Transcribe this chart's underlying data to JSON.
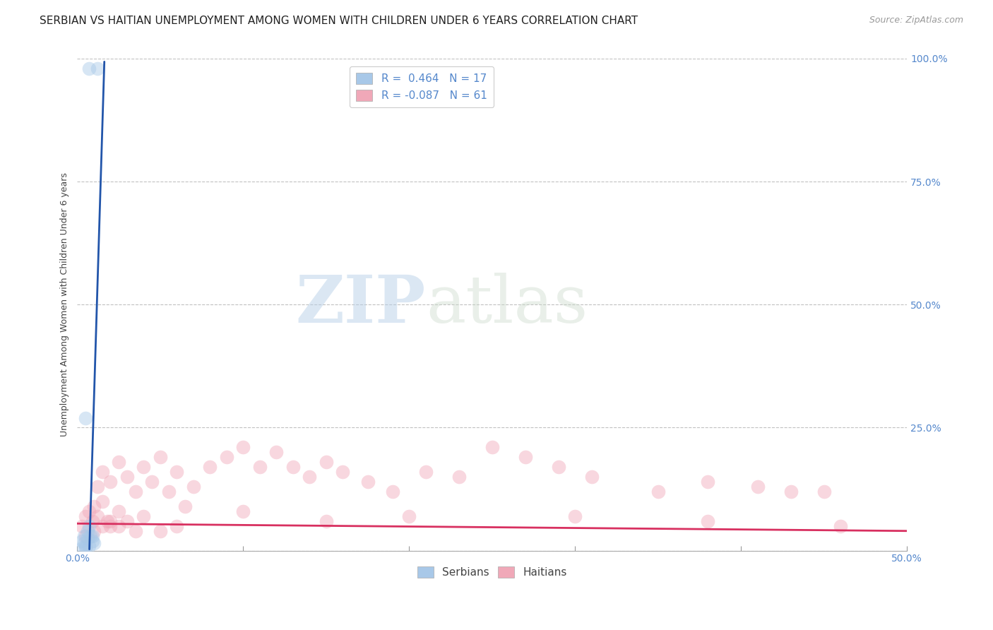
{
  "title": "SERBIAN VS HAITIAN UNEMPLOYMENT AMONG WOMEN WITH CHILDREN UNDER 6 YEARS CORRELATION CHART",
  "source": "Source: ZipAtlas.com",
  "ylabel": "Unemployment Among Women with Children Under 6 years",
  "watermark_zip": "ZIP",
  "watermark_atlas": "atlas",
  "xlim": [
    0.0,
    0.5
  ],
  "ylim": [
    0.0,
    1.0
  ],
  "ytick_vals": [
    0.0,
    0.25,
    0.5,
    0.75,
    1.0
  ],
  "ytick_labels": [
    "",
    "25.0%",
    "50.0%",
    "75.0%",
    "100.0%"
  ],
  "xtick_vals": [
    0.0,
    0.1,
    0.2,
    0.3,
    0.4,
    0.5
  ],
  "legend_line1": "R =  0.464   N = 17",
  "legend_line2": "R = -0.087   N = 61",
  "serbian_color": "#a8c8e8",
  "haitian_color": "#f0a8b8",
  "serbian_line_color": "#2255aa",
  "haitian_line_color": "#d83060",
  "serb_x": [
    0.007,
    0.012,
    0.005,
    0.003,
    0.004,
    0.006,
    0.007,
    0.008,
    0.009,
    0.005,
    0.004,
    0.006,
    0.003,
    0.007,
    0.009,
    0.005,
    0.01
  ],
  "serb_y": [
    0.98,
    0.98,
    0.27,
    0.02,
    0.03,
    0.04,
    0.05,
    0.03,
    0.02,
    0.01,
    0.015,
    0.025,
    0.005,
    0.01,
    0.03,
    0.005,
    0.015
  ],
  "haiti_x": [
    0.003,
    0.005,
    0.007,
    0.009,
    0.01,
    0.012,
    0.015,
    0.018,
    0.02,
    0.012,
    0.015,
    0.02,
    0.025,
    0.025,
    0.03,
    0.035,
    0.04,
    0.045,
    0.05,
    0.055,
    0.06,
    0.065,
    0.07,
    0.08,
    0.09,
    0.1,
    0.11,
    0.12,
    0.13,
    0.14,
    0.15,
    0.16,
    0.175,
    0.19,
    0.21,
    0.23,
    0.25,
    0.27,
    0.29,
    0.31,
    0.35,
    0.38,
    0.41,
    0.45,
    0.005,
    0.01,
    0.015,
    0.02,
    0.025,
    0.03,
    0.035,
    0.04,
    0.05,
    0.06,
    0.1,
    0.15,
    0.2,
    0.3,
    0.38,
    0.43,
    0.46
  ],
  "haiti_y": [
    0.05,
    0.07,
    0.08,
    0.06,
    0.09,
    0.07,
    0.1,
    0.06,
    0.05,
    0.13,
    0.16,
    0.14,
    0.18,
    0.08,
    0.15,
    0.12,
    0.17,
    0.14,
    0.19,
    0.12,
    0.16,
    0.09,
    0.13,
    0.17,
    0.19,
    0.21,
    0.17,
    0.2,
    0.17,
    0.15,
    0.18,
    0.16,
    0.14,
    0.12,
    0.16,
    0.15,
    0.21,
    0.19,
    0.17,
    0.15,
    0.12,
    0.14,
    0.13,
    0.12,
    0.03,
    0.04,
    0.05,
    0.06,
    0.05,
    0.06,
    0.04,
    0.07,
    0.04,
    0.05,
    0.08,
    0.06,
    0.07,
    0.07,
    0.06,
    0.12,
    0.05
  ],
  "serb_slope": 110.0,
  "serb_intercept": -0.8,
  "haiti_slope": -0.03,
  "haiti_intercept": 0.055,
  "title_fontsize": 11,
  "axis_label_fontsize": 9,
  "tick_fontsize": 10,
  "marker_size": 80,
  "marker_alpha": 0.45,
  "background_color": "#ffffff",
  "grid_color": "#bbbbbb",
  "tick_color": "#5588cc"
}
